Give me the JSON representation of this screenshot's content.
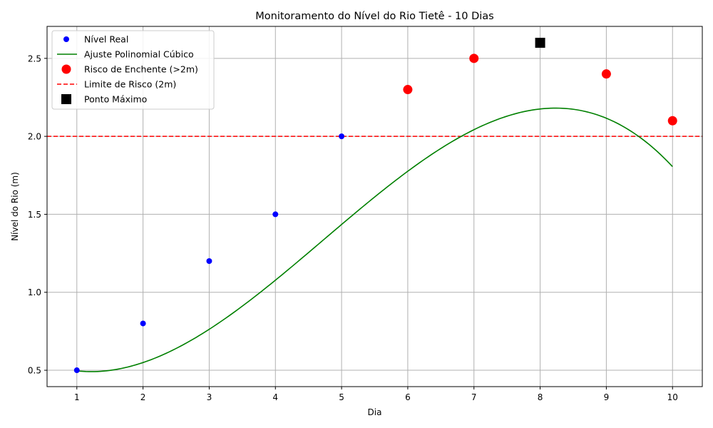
{
  "chart_data": {
    "type": "line",
    "title": "Monitoramento do Nível do Rio Tietê - 10 Dias",
    "xlabel": "Dia",
    "ylabel": "Nível do Rio (m)",
    "xlim": [
      0.55,
      10.45
    ],
    "ylim": [
      0.395,
      2.705
    ],
    "xticks": [
      1,
      2,
      3,
      4,
      5,
      6,
      7,
      8,
      9,
      10
    ],
    "xtick_labels": [
      "1",
      "2",
      "3",
      "4",
      "5",
      "6",
      "7",
      "8",
      "9",
      "10"
    ],
    "yticks": [
      0.5,
      1.0,
      1.5,
      2.0,
      2.5
    ],
    "ytick_labels": [
      "0.5",
      "1.0",
      "1.5",
      "2.0",
      "2.5"
    ],
    "grid": true,
    "legend_position": "top-left",
    "series": [
      {
        "name": "Nível Real",
        "kind": "markers",
        "color": "#0000ff",
        "x": [
          1,
          2,
          3,
          4,
          5,
          6,
          7,
          8,
          9,
          10
        ],
        "y": [
          0.5,
          0.8,
          1.2,
          1.5,
          2.0,
          2.3,
          2.5,
          2.6,
          2.4,
          2.1
        ]
      },
      {
        "name": "Ajuste Polinomial Cúbico",
        "kind": "curve",
        "color": "#008000",
        "poly_coefficients": [
          -0.00979,
          0.13881,
          -0.29472,
          0.6619
        ],
        "x_range": [
          1,
          10
        ]
      },
      {
        "name": "Risco de Enchente (>2m)",
        "kind": "markers-large",
        "color": "#ff0000",
        "x": [
          6,
          7,
          9,
          10
        ],
        "y": [
          2.3,
          2.5,
          2.4,
          2.1
        ]
      },
      {
        "name": "Limite de Risco (2m)",
        "kind": "hline",
        "color": "#ff0000",
        "y": 2.0
      },
      {
        "name": "Ponto Máximo",
        "kind": "square",
        "color": "#000000",
        "x": [
          8
        ],
        "y": [
          2.6
        ]
      }
    ]
  }
}
